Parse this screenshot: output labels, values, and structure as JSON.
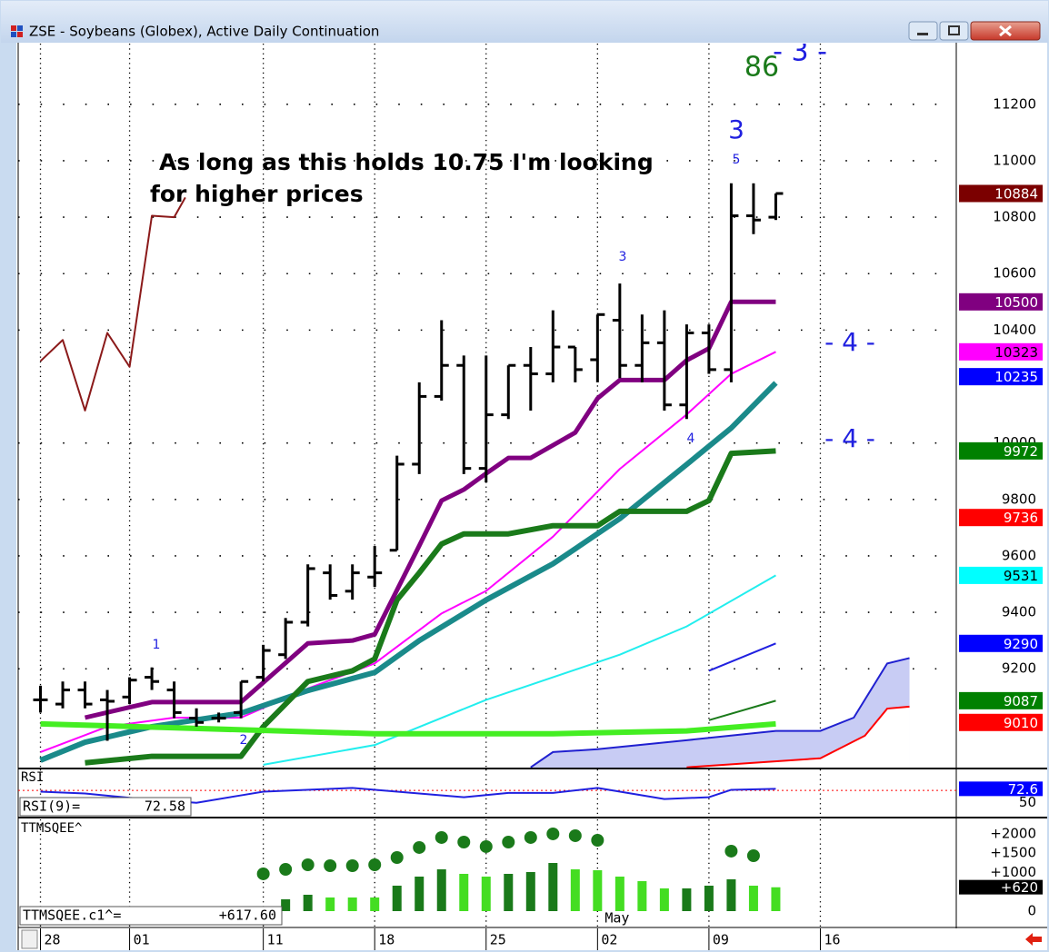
{
  "window": {
    "title": "ZSE - Soybeans (Globex), Active Daily Continuation"
  },
  "chart_data": [
    {
      "type": "ohlc",
      "xlim": [
        -1,
        41.1
      ],
      "xticks": [
        {
          "value": 0,
          "label": "28"
        },
        {
          "value": 4,
          "label": "01"
        },
        {
          "value": 10,
          "label": "11"
        },
        {
          "value": 15,
          "label": "18"
        },
        {
          "value": 20,
          "label": "25"
        },
        {
          "value": 25,
          "label": "02"
        },
        {
          "value": 30,
          "label": "09"
        },
        {
          "value": 35,
          "label": "16"
        }
      ],
      "month_label": "May",
      "ylim": [
        8850,
        11415
      ],
      "yticks": [
        9200,
        9400,
        9600,
        9800,
        10000,
        10400,
        10600,
        10800,
        11000,
        11200
      ],
      "grid": true,
      "color": "#000000",
      "open": [
        9090,
        9075,
        9125,
        9090,
        9100,
        9170,
        9125,
        9025,
        9025,
        9045,
        9170,
        9250,
        9365,
        9540,
        9475,
        9525,
        9620,
        9925,
        10165,
        10275,
        9910,
        10100,
        10275,
        10245,
        10340,
        10295,
        10435,
        10275,
        10355,
        10135,
        10390,
        10260,
        10805,
        10800
      ],
      "high": [
        9140,
        9155,
        9155,
        9125,
        9170,
        9205,
        9155,
        9060,
        9045,
        9155,
        9285,
        9380,
        9570,
        9570,
        9570,
        9635,
        9955,
        10215,
        10435,
        10310,
        10310,
        10275,
        10340,
        10470,
        10340,
        10455,
        10565,
        10455,
        10470,
        10420,
        10420,
        10920,
        10920,
        10884
      ],
      "low": [
        9045,
        9060,
        9060,
        8945,
        9075,
        9125,
        9025,
        8995,
        9010,
        9025,
        9155,
        9235,
        9350,
        9445,
        9445,
        9490,
        9620,
        9890,
        10150,
        9890,
        9860,
        10085,
        10115,
        10215,
        10215,
        10215,
        10230,
        10215,
        10115,
        10085,
        10245,
        10215,
        10740,
        10790
      ],
      "close": [
        9090,
        9125,
        9075,
        9085,
        9160,
        9155,
        9045,
        9010,
        9025,
        9155,
        9265,
        9365,
        9555,
        9460,
        9540,
        9540,
        9925,
        10165,
        10275,
        9910,
        10100,
        10275,
        10245,
        10340,
        10260,
        10455,
        10275,
        10355,
        10135,
        10390,
        10260,
        10805,
        10790,
        10884
      ],
      "area": {
        "color": "#c8ccf4",
        "edge": "#2020d0",
        "x": [
          22,
          23,
          25,
          29,
          33,
          35,
          36.5,
          38,
          39
        ],
        "values": [
          8851,
          8905,
          8915,
          8947,
          8980,
          8980,
          9027,
          9219,
          9238
        ]
      },
      "area_floor": {
        "color": "#ff0000",
        "x": [
          29,
          35,
          37,
          38,
          39
        ],
        "values": [
          8851,
          8883,
          8963,
          9059,
          9066
        ]
      },
      "series": [
        {
          "color": "#8b1a1a",
          "width": 2,
          "x": [
            0,
            1,
            2,
            3,
            4,
            5,
            6,
            6.5
          ],
          "values": [
            10290,
            10365,
            10115,
            10390,
            10270,
            10805,
            10800,
            10870
          ]
        },
        {
          "color": "#22eeee",
          "width": 2,
          "x": [
            10,
            15,
            20,
            26,
            29,
            33
          ],
          "values": [
            8860,
            8930,
            9090,
            9250,
            9350,
            9531
          ]
        },
        {
          "color": "#ff00ff",
          "width": 2,
          "x": [
            0,
            3,
            6,
            9,
            12,
            15,
            18,
            20,
            23,
            26,
            29,
            31,
            33
          ],
          "values": [
            8905,
            8995,
            9027,
            9027,
            9130,
            9219,
            9396,
            9476,
            9668,
            9908,
            10101,
            10245,
            10323
          ]
        },
        {
          "color": "#1a8a8a",
          "width": 6,
          "x": [
            0,
            2,
            5,
            9,
            12,
            15,
            17,
            20,
            23,
            26,
            29,
            31,
            33
          ],
          "values": [
            8876,
            8940,
            8995,
            9043,
            9123,
            9187,
            9300,
            9444,
            9572,
            9732,
            9924,
            10053,
            10213
          ]
        },
        {
          "color": "#1a7a1a",
          "width": 6,
          "x": [
            2,
            5,
            9,
            10,
            12,
            14,
            15,
            16,
            17,
            18,
            19,
            21,
            23,
            25,
            26,
            29,
            30,
            31,
            33
          ],
          "values": [
            8867,
            8890,
            8890,
            8995,
            9155,
            9193,
            9235,
            9444,
            9540,
            9642,
            9678,
            9678,
            9707,
            9707,
            9758,
            9758,
            9796,
            9963,
            9972
          ]
        },
        {
          "color": "#800080",
          "width": 5,
          "x": [
            2,
            5,
            9,
            12,
            14,
            15,
            17,
            18,
            19,
            20,
            21,
            22,
            24,
            25,
            26,
            28,
            29,
            30,
            31,
            33
          ],
          "values": [
            9027,
            9082,
            9082,
            9290,
            9300,
            9322,
            9636,
            9796,
            9835,
            9892,
            9947,
            9947,
            10037,
            10158,
            10223,
            10223,
            10293,
            10335,
            10500,
            10500
          ]
        },
        {
          "color": "#44ee22",
          "width": 6,
          "x": [
            0,
            15,
            23,
            29,
            33
          ],
          "values": [
            9005,
            8970,
            8970,
            8980,
            9005
          ]
        },
        {
          "color": "#2020e0",
          "width": 2,
          "x": [
            30,
            33
          ],
          "values": [
            9193,
            9290
          ]
        },
        {
          "color": "#1a7a1a",
          "width": 2,
          "x": [
            30,
            33
          ],
          "values": [
            9018,
            9087
          ]
        }
      ],
      "price_markers": [
        {
          "value": 10884,
          "color": "#7b0000",
          "text_color": "#ffffff"
        },
        {
          "value": 10500,
          "color": "#800080",
          "text_color": "#ffffff"
        },
        {
          "value": 10323,
          "color": "#ff00ff",
          "text_color": "#000000"
        },
        {
          "value": 10235,
          "color": "#0000ff",
          "text_color": "#ffffff"
        },
        {
          "value": 9972,
          "color": "#008000",
          "text_color": "#ffffff"
        },
        {
          "value": 9736,
          "color": "#ff0000",
          "text_color": "#ffffff"
        },
        {
          "value": 9531,
          "color": "#00ffff",
          "text_color": "#000000"
        },
        {
          "value": 9290,
          "color": "#0000ff",
          "text_color": "#ffffff"
        },
        {
          "value": 9087,
          "color": "#008000",
          "text_color": "#ffffff"
        },
        {
          "value": 9010,
          "color": "#ff0000",
          "text_color": "#ffffff"
        }
      ],
      "annotations": [
        {
          "text": "As long as this holds 10.75 I'm looking",
          "color": "#000000"
        },
        {
          "text": "for higher prices",
          "color": "#000000"
        },
        {
          "text": "86",
          "color": "#1a7a1a"
        },
        {
          "text": "- 3 -",
          "color": "#2020e0"
        },
        {
          "text": "3",
          "color": "#2020e0"
        },
        {
          "text": "5",
          "color": "#2020e0"
        },
        {
          "text": "3",
          "color": "#2020e0"
        },
        {
          "text": "- 4 -",
          "color": "#2020e0"
        },
        {
          "text": "- 4 -",
          "color": "#2020e0"
        },
        {
          "text": "4",
          "color": "#2020e0"
        },
        {
          "text": "1",
          "color": "#2020e0"
        },
        {
          "text": "2",
          "color": "#2020e0"
        }
      ]
    },
    {
      "type": "line",
      "title": "RSI",
      "readout_label": "RSI(9)=",
      "readout": 72.58,
      "ylim": [
        29,
        104
      ],
      "yticks": [
        50
      ],
      "reference_line": {
        "value": 70,
        "color": "#ff0000"
      },
      "series": [
        {
          "color": "#2020e0",
          "width": 2,
          "x": [
            0,
            2,
            4,
            7,
            9,
            10,
            14,
            19,
            21,
            23,
            25,
            28,
            30,
            31,
            33
          ],
          "values": [
            68,
            65,
            58,
            50,
            62,
            68,
            74,
            59,
            66,
            66,
            74,
            56,
            59,
            71,
            72.58
          ]
        }
      ],
      "price_markers": [
        {
          "value": 72.6,
          "color": "#0000ff",
          "text_color": "#ffffff"
        }
      ]
    },
    {
      "type": "bar",
      "title": "TTMSQEE^",
      "readout_label": "TTMSQEE.c1^=",
      "readout": {
        "value": 617.6,
        "label": "+617.60"
      },
      "ylim": [
        -400,
        2376
      ],
      "yticks": [
        {
          "value": 2000,
          "label": "+2000"
        },
        {
          "value": 1500,
          "label": "+1500"
        },
        {
          "value": 1000,
          "label": "+1000"
        },
        0
      ],
      "x": [
        11,
        12,
        13,
        14,
        15,
        16,
        17,
        18,
        19,
        20,
        21,
        22,
        23,
        24,
        25,
        26,
        27,
        28,
        29,
        30,
        31,
        32,
        33
      ],
      "values": [
        306,
        424,
        353,
        353,
        353,
        659,
        894,
        1082,
        965,
        894,
        965,
        1012,
        1247,
        1082,
        1059,
        894,
        776,
        588,
        588,
        659,
        824,
        659,
        617.6
      ],
      "colors": [
        "#1a7a1a",
        "#1a7a1a",
        "#44dd22",
        "#44dd22",
        "#44dd22",
        "#1a7a1a",
        "#1a7a1a",
        "#1a7a1a",
        "#44dd22",
        "#44dd22",
        "#1a7a1a",
        "#1a7a1a",
        "#1a7a1a",
        "#44dd22",
        "#44dd22",
        "#44dd22",
        "#44dd22",
        "#44dd22",
        "#1a7a1a",
        "#1a7a1a",
        "#1a7a1a",
        "#44dd22",
        "#44dd22"
      ],
      "dots": {
        "color": "#1a7a1a",
        "x": [
          10,
          11,
          12,
          13,
          14,
          15,
          16,
          17,
          18,
          19,
          20,
          21,
          22,
          23,
          24,
          25,
          31,
          32
        ],
        "values": [
          965,
          1082,
          1200,
          1176,
          1176,
          1200,
          1388,
          1647,
          1906,
          1788,
          1671,
          1788,
          1906,
          2000,
          1953,
          1835,
          1553,
          1435
        ]
      },
      "price_markers": [
        {
          "value": 620,
          "label": "+620",
          "color": "#000000",
          "text_color": "#ffffff"
        }
      ]
    }
  ]
}
